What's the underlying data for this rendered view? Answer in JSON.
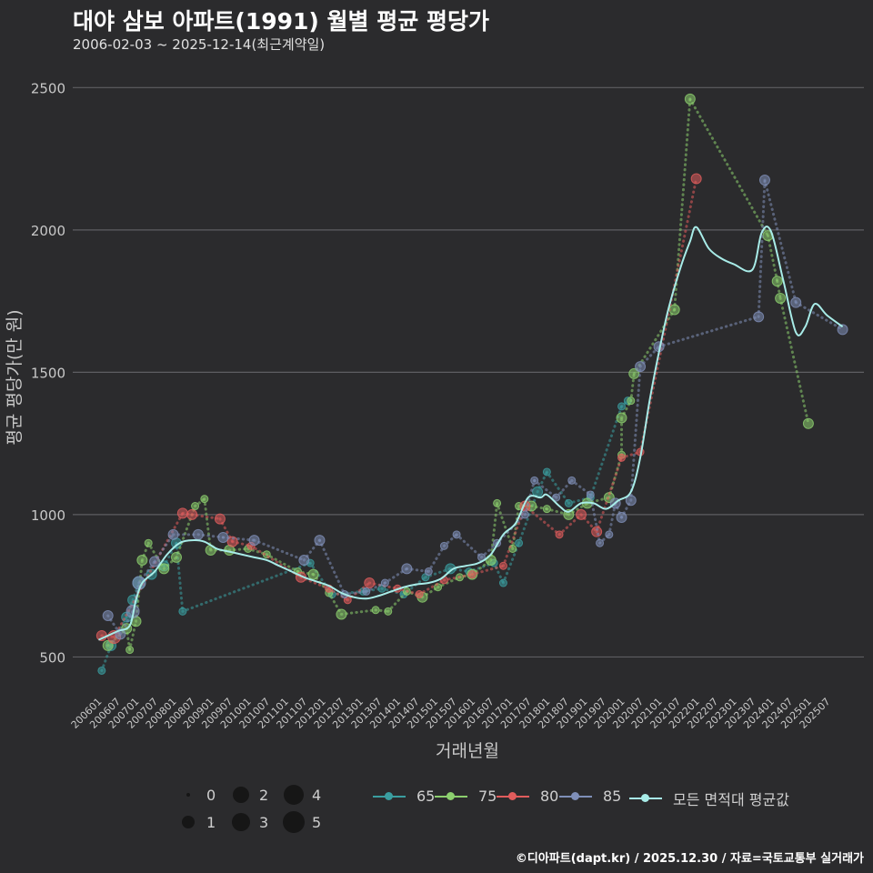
{
  "title": "대야 삼보 아파트(1991) 월별 평균 평당가",
  "subtitle": "2006-02-03 ~ 2025-12-14(최근계약일)",
  "footer": "©디아파트(dapt.kr) / 2025.12.30 / 자료=국토교통부 실거래가",
  "chart_data": {
    "type": "scatter",
    "title": "대야 삼보 아파트(1991) 월별 평균 평당가",
    "xlabel": "거래년월",
    "ylabel": "평균 평당가(만 원)",
    "ylim": [
      380,
      2600
    ],
    "yticks": [
      500,
      1000,
      1500,
      2000,
      2500
    ],
    "x_range": [
      "2006-01",
      "2025-12"
    ],
    "x_tick_labels": [
      "200601",
      "200607",
      "200701",
      "200707",
      "200801",
      "200807",
      "200901",
      "200907",
      "201001",
      "201007",
      "201101",
      "201107",
      "201201",
      "201207",
      "201301",
      "201307",
      "201401",
      "201407",
      "201501",
      "201507",
      "201601",
      "201607",
      "201701",
      "201707",
      "201801",
      "201807",
      "201901",
      "201907",
      "202001",
      "202007",
      "202101",
      "202107",
      "202201",
      "202207",
      "202301",
      "202307",
      "202401",
      "202407",
      "202501",
      "202507"
    ],
    "size_legend": {
      "title": "",
      "labels": [
        "0",
        "1",
        "2",
        "3",
        "4",
        "5"
      ]
    },
    "series_legend": [
      "65",
      "75",
      "80",
      "85",
      "모든 면적대 평균값"
    ],
    "colors": {
      "65": "#3a9ea0",
      "75": "#8ccf6e",
      "80": "#e15c5c",
      "85": "#7f8fb8",
      "avg": "#a8ece8",
      "grid": "#5e5e62",
      "text": "#c8c8c8"
    },
    "series": [
      {
        "name": "65",
        "points": [
          [
            "2006-02",
            452,
            1
          ],
          [
            "2006-05",
            540,
            2
          ],
          [
            "2006-10",
            640,
            2
          ],
          [
            "2006-12",
            700,
            2
          ],
          [
            "2007-02",
            760,
            3
          ],
          [
            "2007-06",
            790,
            2
          ],
          [
            "2007-10",
            820,
            2
          ],
          [
            "2008-02",
            900,
            2
          ],
          [
            "2008-04",
            660,
            1
          ],
          [
            "2011-09",
            830,
            1
          ],
          [
            "2012-04",
            720,
            1
          ],
          [
            "2013-02",
            730,
            1
          ],
          [
            "2013-08",
            740,
            1
          ],
          [
            "2014-03",
            720,
            1
          ],
          [
            "2014-10",
            780,
            1
          ],
          [
            "2015-06",
            810,
            2
          ],
          [
            "2015-12",
            800,
            1
          ],
          [
            "2016-08",
            830,
            1
          ],
          [
            "2016-11",
            760,
            1
          ],
          [
            "2017-04",
            900,
            1
          ],
          [
            "2017-10",
            1080,
            2
          ],
          [
            "2018-01",
            1150,
            1
          ],
          [
            "2018-08",
            1040,
            1
          ],
          [
            "2019-03",
            1060,
            1
          ],
          [
            "2020-01",
            1380,
            1
          ],
          [
            "2020-03",
            1400,
            1
          ]
        ]
      },
      {
        "name": "75",
        "points": [
          [
            "2006-04",
            540,
            2
          ],
          [
            "2006-10",
            600,
            2
          ],
          [
            "2006-11",
            525,
            1
          ],
          [
            "2007-01",
            625,
            2
          ],
          [
            "2007-03",
            840,
            2
          ],
          [
            "2007-05",
            900,
            1
          ],
          [
            "2007-10",
            810,
            2
          ],
          [
            "2008-02",
            850,
            2
          ],
          [
            "2008-08",
            1030,
            1
          ],
          [
            "2008-11",
            1055,
            1
          ],
          [
            "2009-01",
            875,
            2
          ],
          [
            "2009-07",
            875,
            2
          ],
          [
            "2010-01",
            880,
            1
          ],
          [
            "2010-07",
            860,
            1
          ],
          [
            "2011-05",
            800,
            1
          ],
          [
            "2011-10",
            790,
            2
          ],
          [
            "2012-03",
            725,
            1
          ],
          [
            "2012-07",
            650,
            2
          ],
          [
            "2013-06",
            665,
            1
          ],
          [
            "2013-10",
            660,
            1
          ],
          [
            "2014-04",
            730,
            1
          ],
          [
            "2014-09",
            710,
            2
          ],
          [
            "2015-02",
            745,
            1
          ],
          [
            "2015-09",
            780,
            1
          ],
          [
            "2016-01",
            790,
            2
          ],
          [
            "2016-07",
            840,
            2
          ],
          [
            "2016-09",
            1040,
            1
          ],
          [
            "2017-02",
            880,
            1
          ],
          [
            "2017-04",
            1030,
            1
          ],
          [
            "2017-08",
            1030,
            2
          ],
          [
            "2018-01",
            1020,
            1
          ],
          [
            "2018-08",
            1000,
            2
          ],
          [
            "2019-02",
            1040,
            2
          ],
          [
            "2019-09",
            1060,
            2
          ],
          [
            "2020-01",
            1210,
            1
          ],
          [
            "2020-01",
            1340,
            2
          ],
          [
            "2020-05",
            1495,
            2
          ],
          [
            "2020-04",
            1400,
            1
          ],
          [
            "2021-06",
            1720,
            2
          ],
          [
            "2021-11",
            2460,
            2
          ],
          [
            "2023-12",
            1980,
            2
          ],
          [
            "2024-03",
            1820,
            2
          ],
          [
            "2024-04",
            1760,
            2
          ],
          [
            "2025-01",
            1320,
            2
          ]
        ]
      },
      {
        "name": "80",
        "points": [
          [
            "2006-02",
            575,
            2
          ],
          [
            "2006-06",
            570,
            3
          ],
          [
            "2008-04",
            1005,
            2
          ],
          [
            "2008-07",
            1000,
            2
          ],
          [
            "2009-04",
            985,
            2
          ],
          [
            "2009-08",
            905,
            2
          ],
          [
            "2010-02",
            890,
            1
          ],
          [
            "2011-06",
            780,
            2
          ],
          [
            "2012-03",
            740,
            1
          ],
          [
            "2012-09",
            700,
            1
          ],
          [
            "2013-04",
            760,
            2
          ],
          [
            "2014-01",
            740,
            1
          ],
          [
            "2014-08",
            720,
            1
          ],
          [
            "2015-04",
            770,
            1
          ],
          [
            "2016-01",
            790,
            1
          ],
          [
            "2016-11",
            820,
            1
          ],
          [
            "2017-06",
            1030,
            2
          ],
          [
            "2018-05",
            930,
            1
          ],
          [
            "2018-12",
            1000,
            2
          ],
          [
            "2019-05",
            940,
            2
          ],
          [
            "2020-01",
            1200,
            1
          ],
          [
            "2020-07",
            1220,
            1
          ],
          [
            "2022-01",
            2180,
            2
          ]
        ]
      },
      {
        "name": "85",
        "points": [
          [
            "2006-04",
            645,
            2
          ],
          [
            "2006-08",
            580,
            2
          ],
          [
            "2006-12",
            660,
            3
          ],
          [
            "2007-02",
            760,
            3
          ],
          [
            "2007-07",
            835,
            2
          ],
          [
            "2008-01",
            930,
            2
          ],
          [
            "2008-09",
            930,
            2
          ],
          [
            "2009-05",
            920,
            2
          ],
          [
            "2010-03",
            910,
            2
          ],
          [
            "2011-07",
            840,
            2
          ],
          [
            "2011-12",
            910,
            2
          ],
          [
            "2012-08",
            720,
            1
          ],
          [
            "2013-03",
            730,
            1
          ],
          [
            "2013-09",
            760,
            1
          ],
          [
            "2014-04",
            810,
            2
          ],
          [
            "2014-11",
            800,
            1
          ],
          [
            "2015-04",
            890,
            1
          ],
          [
            "2015-08",
            930,
            1
          ],
          [
            "2016-04",
            850,
            1
          ],
          [
            "2016-09",
            900,
            1
          ],
          [
            "2017-06",
            1000,
            1
          ],
          [
            "2017-09",
            1120,
            1
          ],
          [
            "2018-04",
            1060,
            1
          ],
          [
            "2018-09",
            1120,
            1
          ],
          [
            "2019-03",
            1070,
            1
          ],
          [
            "2019-06",
            900,
            1
          ],
          [
            "2019-09",
            930,
            1
          ],
          [
            "2019-11",
            1040,
            2
          ],
          [
            "2020-01",
            990,
            2
          ],
          [
            "2020-04",
            1050,
            2
          ],
          [
            "2020-07",
            1520,
            2
          ],
          [
            "2021-01",
            1590,
            2
          ],
          [
            "2023-09",
            1695,
            2
          ],
          [
            "2023-11",
            2175,
            2
          ],
          [
            "2024-09",
            1745,
            2
          ],
          [
            "2025-12",
            1650,
            2
          ]
        ]
      },
      {
        "name": "모든 면적대 평균값",
        "points": [
          [
            "2006-01",
            560
          ],
          [
            "2006-07",
            590
          ],
          [
            "2006-11",
            610
          ],
          [
            "2007-01",
            700
          ],
          [
            "2007-03",
            760
          ],
          [
            "2007-07",
            800
          ],
          [
            "2007-11",
            860
          ],
          [
            "2008-03",
            900
          ],
          [
            "2008-07",
            910
          ],
          [
            "2008-11",
            905
          ],
          [
            "2009-03",
            880
          ],
          [
            "2009-07",
            870
          ],
          [
            "2009-11",
            860
          ],
          [
            "2010-03",
            850
          ],
          [
            "2010-07",
            840
          ],
          [
            "2010-11",
            820
          ],
          [
            "2011-03",
            800
          ],
          [
            "2011-07",
            780
          ],
          [
            "2011-11",
            765
          ],
          [
            "2012-03",
            750
          ],
          [
            "2012-07",
            725
          ],
          [
            "2012-11",
            710
          ],
          [
            "2013-03",
            705
          ],
          [
            "2013-07",
            715
          ],
          [
            "2013-11",
            730
          ],
          [
            "2014-03",
            745
          ],
          [
            "2014-07",
            755
          ],
          [
            "2014-11",
            760
          ],
          [
            "2015-03",
            775
          ],
          [
            "2015-07",
            810
          ],
          [
            "2015-11",
            820
          ],
          [
            "2016-03",
            830
          ],
          [
            "2016-07",
            860
          ],
          [
            "2016-11",
            930
          ],
          [
            "2017-03",
            970
          ],
          [
            "2017-07",
            1060
          ],
          [
            "2017-11",
            1060
          ],
          [
            "2018-01",
            1070
          ],
          [
            "2018-05",
            1030
          ],
          [
            "2018-08",
            1010
          ],
          [
            "2018-12",
            1040
          ],
          [
            "2019-04",
            1040
          ],
          [
            "2019-08",
            1020
          ],
          [
            "2019-12",
            1050
          ],
          [
            "2020-04",
            1080
          ],
          [
            "2020-07",
            1200
          ],
          [
            "2020-10",
            1400
          ],
          [
            "2021-01",
            1570
          ],
          [
            "2021-04",
            1720
          ],
          [
            "2021-08",
            1870
          ],
          [
            "2021-11",
            1960
          ],
          [
            "2022-01",
            2010
          ],
          [
            "2022-05",
            1935
          ],
          [
            "2022-09",
            1900
          ],
          [
            "2023-01",
            1880
          ],
          [
            "2023-07",
            1860
          ],
          [
            "2023-10",
            1990
          ],
          [
            "2024-01",
            1995
          ],
          [
            "2024-05",
            1820
          ],
          [
            "2024-09",
            1640
          ],
          [
            "2024-12",
            1660
          ],
          [
            "2025-03",
            1740
          ],
          [
            "2025-07",
            1700
          ],
          [
            "2025-12",
            1660
          ]
        ]
      }
    ]
  }
}
